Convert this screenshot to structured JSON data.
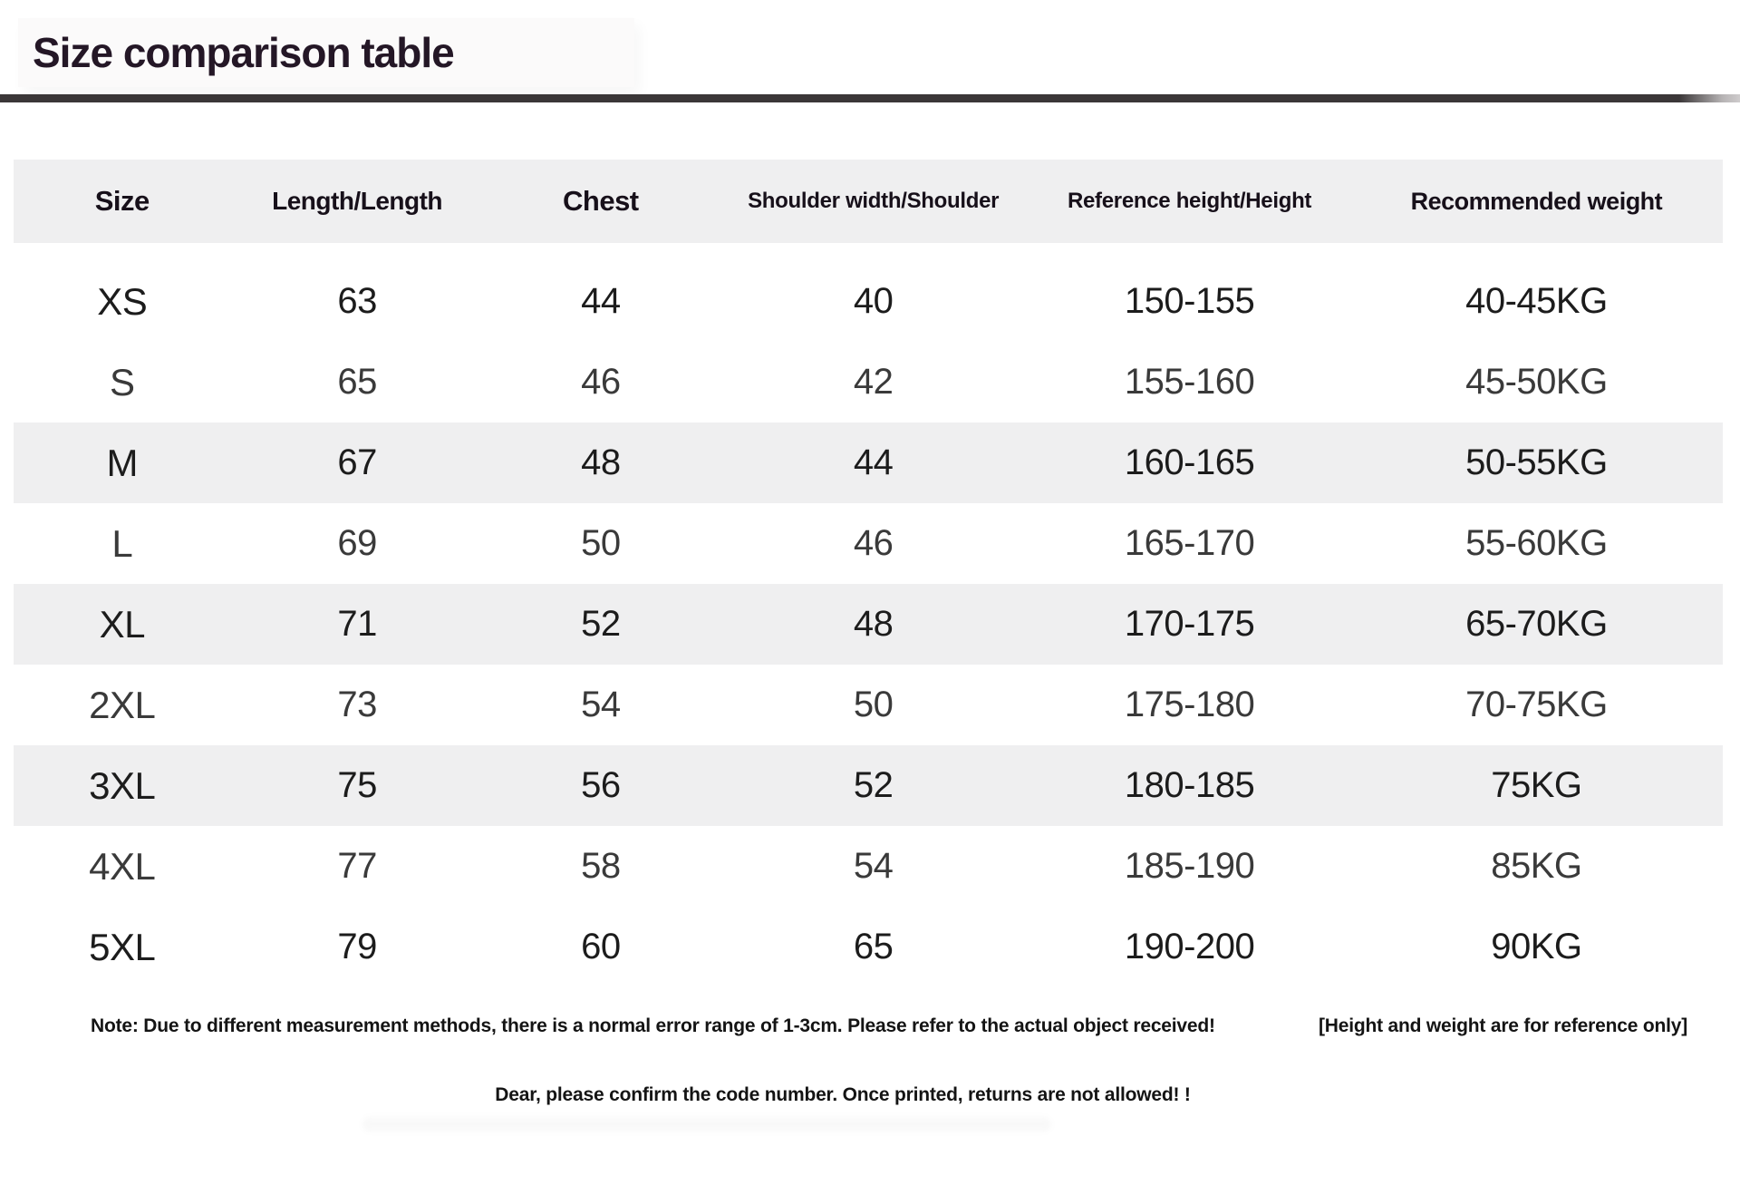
{
  "title": "Size comparison table",
  "table": {
    "headers": {
      "size": "Size",
      "length": "Length/Length",
      "chest": "Chest",
      "shoulder": "Shoulder width/Shoulder",
      "height": "Reference height/Height",
      "weight": "Recommended weight"
    },
    "rows": [
      {
        "size": "XS",
        "length": "63",
        "chest": "44",
        "shoulder": "40",
        "height": "150-155",
        "weight": "40-45KG"
      },
      {
        "size": "S",
        "length": "65",
        "chest": "46",
        "shoulder": "42",
        "height": "155-160",
        "weight": "45-50KG"
      },
      {
        "size": "M",
        "length": "67",
        "chest": "48",
        "shoulder": "44",
        "height": "160-165",
        "weight": "50-55KG"
      },
      {
        "size": "L",
        "length": "69",
        "chest": "50",
        "shoulder": "46",
        "height": "165-170",
        "weight": "55-60KG"
      },
      {
        "size": "XL",
        "length": "71",
        "chest": "52",
        "shoulder": "48",
        "height": "170-175",
        "weight": "65-70KG"
      },
      {
        "size": "2XL",
        "length": "73",
        "chest": "54",
        "shoulder": "50",
        "height": "175-180",
        "weight": "70-75KG"
      },
      {
        "size": "3XL",
        "length": "75",
        "chest": "56",
        "shoulder": "52",
        "height": "180-185",
        "weight": "75KG"
      },
      {
        "size": "4XL",
        "length": "77",
        "chest": "58",
        "shoulder": "54",
        "height": "185-190",
        "weight": "85KG"
      },
      {
        "size": "5XL",
        "length": "79",
        "chest": "60",
        "shoulder": "65",
        "height": "190-200",
        "weight": "90KG"
      }
    ]
  },
  "notes": {
    "line1_left": "Note: Due to different measurement methods, there is a normal error range of 1-3cm. Please refer to the actual object received!",
    "line1_right": "[Height and weight are for reference only]",
    "line2": "Dear, please confirm the code number. Once printed, returns are not allowed! !"
  },
  "colors": {
    "title": "#241726",
    "rule": "#3b3738",
    "band": "#efeff0",
    "text": "#1c1c1c"
  }
}
